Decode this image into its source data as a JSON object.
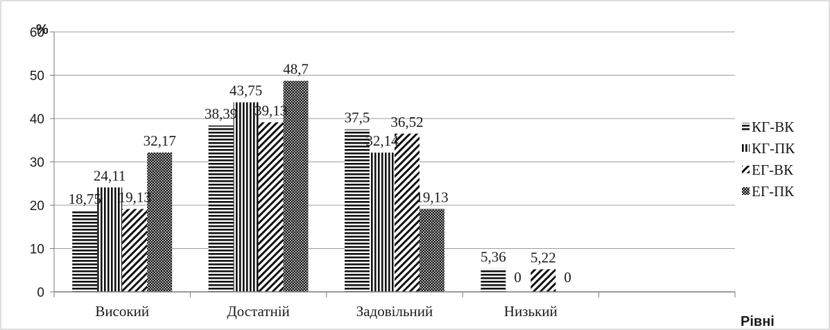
{
  "chart_data": {
    "type": "bar",
    "ylabel": "%",
    "xlabel": "Рівні",
    "ylim": [
      0,
      60
    ],
    "y_ticks": [
      0,
      10,
      20,
      30,
      40,
      50,
      60
    ],
    "grid": true,
    "legend_position": "right",
    "categories": [
      "Високий",
      "Достатній",
      "Задовільний",
      "Низький",
      ""
    ],
    "series": [
      {
        "name": "КГ-ВК",
        "pattern": "horizontal-lines",
        "values": [
          18.75,
          38.39,
          37.5,
          5.36,
          null
        ],
        "labels": [
          "18,75",
          "38,39",
          "37,5",
          "5,36",
          ""
        ]
      },
      {
        "name": "КГ-ПК",
        "pattern": "vertical-lines",
        "values": [
          24.11,
          43.75,
          32.14,
          0,
          null
        ],
        "labels": [
          "24,11",
          "43,75",
          "32,14",
          "0",
          ""
        ]
      },
      {
        "name": "ЕГ-ВК",
        "pattern": "diagonal-lines",
        "values": [
          19.13,
          39.13,
          36.52,
          5.22,
          null
        ],
        "labels": [
          "19,13",
          "39,13",
          "36,52",
          "5,22",
          ""
        ]
      },
      {
        "name": "ЕГ-ПК",
        "pattern": "dense-dots",
        "values": [
          32.17,
          48.7,
          19.13,
          0,
          null
        ],
        "labels": [
          "32,17",
          "48,7",
          "19,13",
          "0",
          ""
        ]
      }
    ]
  }
}
